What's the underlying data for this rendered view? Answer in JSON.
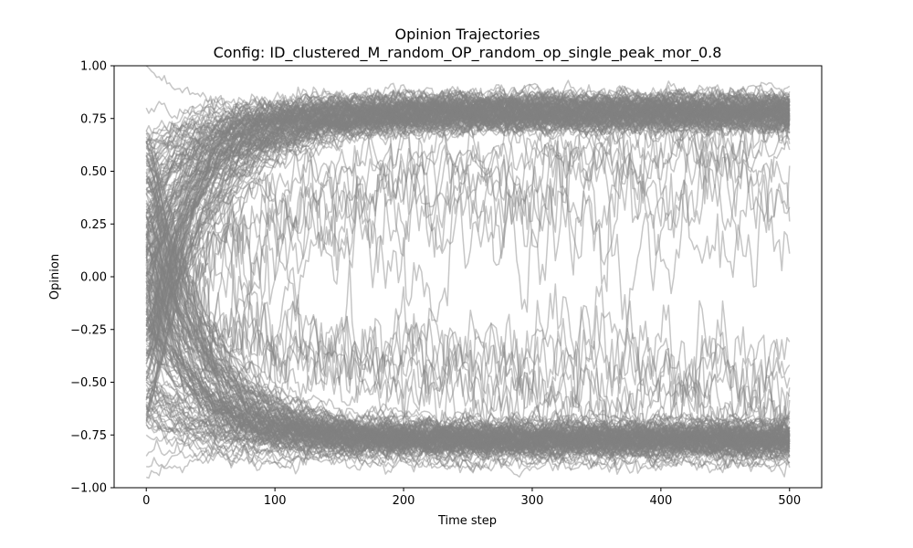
{
  "chart_data": {
    "type": "line",
    "title": "Opinion Trajectories",
    "subtitle": "Config: ID_clustered_M_random_OP_random_op_single_peak_mor_0.8",
    "xlabel": "Time step",
    "ylabel": "Opinion",
    "xlim": [
      -25,
      525
    ],
    "ylim": [
      -1.0,
      1.0
    ],
    "xticks": [
      0,
      100,
      200,
      300,
      400,
      500
    ],
    "yticks": [
      -1.0,
      -0.75,
      -0.5,
      -0.25,
      0.0,
      0.25,
      0.5,
      0.75,
      1.0
    ],
    "xtick_labels": [
      "0",
      "100",
      "200",
      "300",
      "400",
      "500"
    ],
    "ytick_labels": [
      "−1.00",
      "−0.75",
      "−0.50",
      "−0.25",
      "0.00",
      "0.25",
      "0.50",
      "0.75",
      "1.00"
    ],
    "grid": false,
    "legend": "none",
    "line_color": "#808080",
    "line_alpha": 0.45,
    "num_steps": 500,
    "clusters": [
      {
        "final_mean": 0.78,
        "final_spread": 0.06
      },
      {
        "final_mean": -0.77,
        "final_spread": 0.06
      }
    ],
    "series": [
      {
        "start": 1.0,
        "end": 0.79,
        "noise": 0.02
      },
      {
        "start": 0.8,
        "end": 0.82,
        "noise": 0.02
      },
      {
        "start": 0.55,
        "end": 0.76,
        "noise": 0.02
      },
      {
        "start": 0.42,
        "end": 0.74,
        "noise": 0.02
      },
      {
        "start": 0.33,
        "end": 0.8,
        "noise": 0.02
      },
      {
        "start": 0.25,
        "end": 0.77,
        "noise": 0.02
      },
      {
        "start": 0.18,
        "end": 0.84,
        "noise": 0.02
      },
      {
        "start": 0.12,
        "end": 0.72,
        "noise": 0.02
      },
      {
        "start": 0.08,
        "end": 0.79,
        "noise": 0.02
      },
      {
        "start": 0.04,
        "end": 0.75,
        "noise": 0.02
      },
      {
        "start": 0.0,
        "end": 0.81,
        "noise": 0.02
      },
      {
        "start": -0.03,
        "end": 0.78,
        "noise": 0.02
      },
      {
        "start": -0.06,
        "end": 0.74,
        "noise": 0.02
      },
      {
        "start": 0.2,
        "end": 0.69,
        "noise": 0.05
      },
      {
        "start": 0.1,
        "end": 0.67,
        "noise": 0.05
      },
      {
        "start": 0.02,
        "end": 0.64,
        "noise": 0.06
      },
      {
        "start": -0.05,
        "end": 0.6,
        "noise": 0.07
      },
      {
        "start": 0.15,
        "end": 0.55,
        "noise": 0.08
      },
      {
        "start": -0.1,
        "end": 0.5,
        "noise": 0.09
      },
      {
        "start": -0.02,
        "end": 0.42,
        "noise": 0.1
      },
      {
        "start": 0.05,
        "end": 0.35,
        "noise": 0.1
      },
      {
        "start": -0.08,
        "end": 0.19,
        "noise": 0.1
      },
      {
        "start": 0.5,
        "end": 0.85,
        "noise": 0.02
      },
      {
        "start": 0.65,
        "end": 0.71,
        "noise": 0.02
      },
      {
        "start": -0.95,
        "end": -0.8,
        "noise": 0.02
      },
      {
        "start": -0.85,
        "end": -0.84,
        "noise": 0.02
      },
      {
        "start": -0.7,
        "end": -0.76,
        "noise": 0.02
      },
      {
        "start": -0.6,
        "end": -0.79,
        "noise": 0.02
      },
      {
        "start": -0.5,
        "end": -0.73,
        "noise": 0.02
      },
      {
        "start": -0.42,
        "end": -0.82,
        "noise": 0.02
      },
      {
        "start": -0.35,
        "end": -0.77,
        "noise": 0.02
      },
      {
        "start": -0.28,
        "end": -0.74,
        "noise": 0.02
      },
      {
        "start": -0.22,
        "end": -0.86,
        "noise": 0.02
      },
      {
        "start": -0.16,
        "end": -0.78,
        "noise": 0.02
      },
      {
        "start": -0.12,
        "end": -0.71,
        "noise": 0.02
      },
      {
        "start": -0.09,
        "end": -0.8,
        "noise": 0.02
      },
      {
        "start": -0.2,
        "end": -0.68,
        "noise": 0.05
      },
      {
        "start": -0.15,
        "end": -0.64,
        "noise": 0.06
      },
      {
        "start": -0.1,
        "end": -0.6,
        "noise": 0.07
      },
      {
        "start": -0.05,
        "end": -0.57,
        "noise": 0.08
      },
      {
        "start": -0.12,
        "end": -0.53,
        "noise": 0.09
      },
      {
        "start": -0.02,
        "end": -0.48,
        "noise": 0.1
      },
      {
        "start": -0.18,
        "end": -0.44,
        "noise": 0.1
      },
      {
        "start": -0.08,
        "end": -0.4,
        "noise": 0.1
      },
      {
        "start": -0.75,
        "end": -0.88,
        "noise": 0.02
      },
      {
        "start": -0.9,
        "end": -0.7,
        "noise": 0.02
      }
    ]
  }
}
